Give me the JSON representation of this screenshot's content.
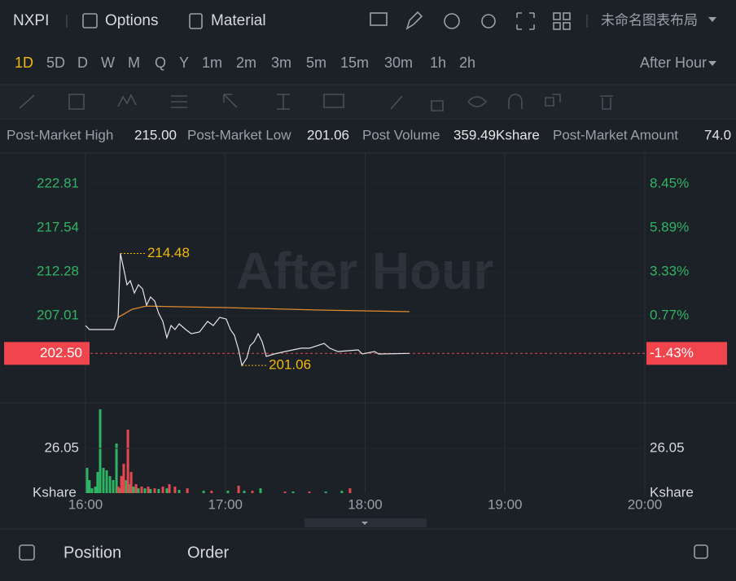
{
  "toolbar": {
    "symbol": "NXPI",
    "options": "Options",
    "material": "Material",
    "layout": "未命名图表布局"
  },
  "timeframes": {
    "items": [
      "1D",
      "5D",
      "D",
      "W",
      "M",
      "Q",
      "Y",
      "1m",
      "2m",
      "3m",
      "5m",
      "15m",
      "30m",
      "1h",
      "2h"
    ],
    "active": 0,
    "session": "After Hour"
  },
  "stats": [
    {
      "label": "Post-Market High",
      "value": "215.00"
    },
    {
      "label": "Post-Market Low",
      "value": "201.06"
    },
    {
      "label": "Post Volume",
      "value": "359.49Kshare"
    },
    {
      "label": "Post-Market Amount",
      "value": "74.0"
    }
  ],
  "chart": {
    "watermark": "After Hour",
    "xlim": [
      0,
      240
    ],
    "xticks": [
      {
        "value": 0,
        "label": "16:00"
      },
      {
        "value": 60,
        "label": "17:00"
      },
      {
        "value": 120,
        "label": "18:00"
      },
      {
        "value": 180,
        "label": "19:00"
      },
      {
        "value": 240,
        "label": "20:00"
      }
    ],
    "ylim": [
      196.58,
      226.52
    ],
    "yticks": [
      222.81,
      217.54,
      212.28,
      207.01
    ],
    "y2ticks": [
      "8.45%",
      "5.89%",
      "3.33%",
      "0.77%"
    ],
    "last_price": {
      "value": 202.5,
      "label": "202.50"
    },
    "last_change": "-1.43%",
    "high": 214.48,
    "low": 201.06,
    "price": {
      "x": [
        0,
        1.7,
        12.2,
        14,
        15,
        16.4,
        17.8,
        19.2,
        21,
        22.7,
        24.5,
        26.2,
        27.9,
        29.7,
        31.4,
        33.2,
        34.9,
        36.7,
        38.4,
        40.2,
        43,
        45.4,
        48.9,
        52.4,
        54.8,
        57.6,
        60.4,
        62.2,
        63.9,
        65.7,
        67.1,
        69.2,
        70.6,
        72.3,
        74.1,
        75.8,
        77.6,
        81,
        85.6,
        92.6,
        96.1,
        102.4,
        104.8,
        108.3,
        117,
        118.8,
        124,
        125.8,
        139
      ],
      "values": [
        205.84,
        205.36,
        205.36,
        206.82,
        214.48,
        212.67,
        210.72,
        211.21,
        209.74,
        210.72,
        210.23,
        208.28,
        209.26,
        208.77,
        207.31,
        206.33,
        204.38,
        205.84,
        205.36,
        206.04,
        205.36,
        204.86,
        205.06,
        206.33,
        205.84,
        206.82,
        206.62,
        205.36,
        204.67,
        202.92,
        201.06,
        201.94,
        203.41,
        203.89,
        204.86,
        203.89,
        202.14,
        202.43,
        202.72,
        203.12,
        203.12,
        203.7,
        203.12,
        202.72,
        202.92,
        202.43,
        202.72,
        202.43,
        202.5
      ],
      "color": "#e6e6e6"
    },
    "average": {
      "x": [
        14,
        20,
        26,
        40,
        60,
        100,
        139
      ],
      "values": [
        206.82,
        207.79,
        208.18,
        208.09,
        207.99,
        207.7,
        207.5
      ],
      "color": "#e08a2e"
    },
    "volume_ylim": [
      0,
      52.6
    ],
    "volume_ticks": [
      26.05
    ],
    "volume_unit": "Kshare",
    "volume_up": {
      "color": "#2fb463",
      "x": [
        0.7,
        1.7,
        2.8,
        4.2,
        5.2,
        6.3,
        7.7,
        9.1,
        10.5,
        11.9,
        13.3,
        14.7,
        16.1,
        17.5,
        19.2,
        20.6,
        22.7,
        25.5,
        27.9,
        31.4,
        34.9,
        40.2,
        50.7,
        61.1,
        68.1,
        75.1,
        89.1,
        103.1,
        110
      ],
      "values": [
        14.7,
        7.6,
        2.8,
        3.8,
        12.3,
        48.8,
        14.7,
        13.3,
        9.9,
        7.6,
        28.9,
        2.8,
        5.2,
        7.6,
        5.2,
        3.8,
        2.8,
        2.8,
        2.4,
        2.4,
        2.8,
        1.9,
        1.4,
        1.4,
        1.4,
        2.8,
        0.9,
        0.9,
        1.4
      ]
    },
    "volume_down": {
      "color": "#e5484d",
      "x": [
        14,
        15.4,
        16.4,
        18.2,
        19.6,
        21.7,
        24.1,
        26.9,
        29.7,
        33.2,
        36,
        38.4,
        43.7,
        54.1,
        65.7,
        71.6,
        85.6,
        96.1,
        113.5
      ],
      "values": [
        3.8,
        10,
        17.1,
        37,
        12.3,
        5.2,
        3.8,
        3.8,
        2.8,
        3.8,
        5.2,
        3.8,
        2.8,
        1.4,
        4.3,
        1.4,
        0.9,
        0.9,
        2.8
      ]
    }
  },
  "bottom": {
    "position": "Position",
    "order": "Order"
  }
}
